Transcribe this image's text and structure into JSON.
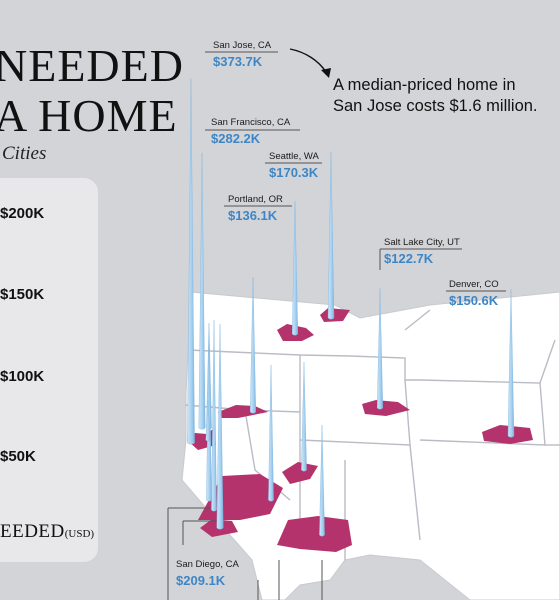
{
  "title": {
    "line1": "NEEDED",
    "line2": "A HOME",
    "subtitle": "Cities"
  },
  "legend": {
    "ticks": [
      "$200K",
      "$150K",
      "$100K",
      "$50K"
    ],
    "caption": "EEDED",
    "unit": "(USD)"
  },
  "annotation": {
    "line1": "A median-priced home in",
    "line2": "San Jose costs $1.6 million."
  },
  "cities": [
    {
      "name": "San Jose, CA",
      "value": "$373.7K",
      "income_k": 373.7
    },
    {
      "name": "San Francisco, CA",
      "value": "$282.2K",
      "income_k": 282.2
    },
    {
      "name": "Seattle, WA",
      "value": "$170.3K",
      "income_k": 170.3
    },
    {
      "name": "Portland, OR",
      "value": "$136.1K",
      "income_k": 136.1
    },
    {
      "name": "Salt Lake City, UT",
      "value": "$122.7K",
      "income_k": 122.7
    },
    {
      "name": "Denver, CO",
      "value": "$150.6K",
      "income_k": 150.6
    },
    {
      "name": "San Diego, CA",
      "value": "$209.1K",
      "income_k": 209.1
    }
  ],
  "colors": {
    "background": "#d3d4d8",
    "land": "#ffffff",
    "state_border": "#b9bcc4",
    "metro": "#b5336d",
    "spike_light": "#cfe6f7",
    "spike_dark": "#8cc0e6",
    "value_text": "#3d86c6"
  }
}
